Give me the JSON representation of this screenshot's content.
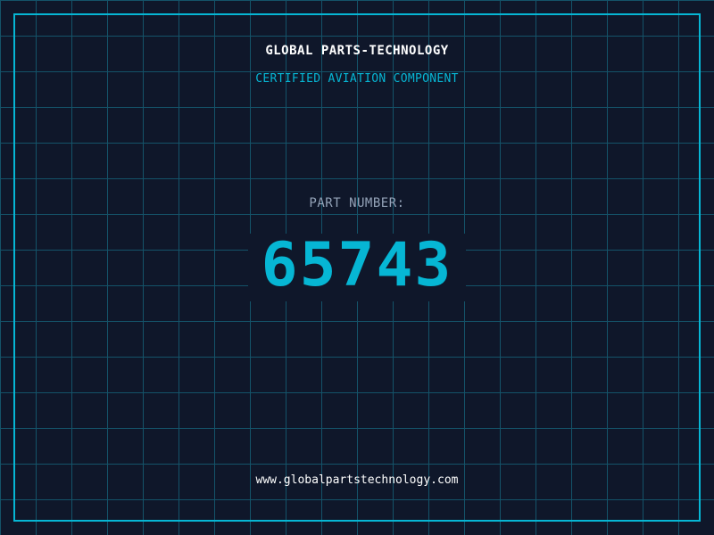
{
  "colors": {
    "background": "#0f172a",
    "grid": "#155e75",
    "accent": "#06b6d4",
    "label": "#94a3b8",
    "text": "#ffffff"
  },
  "header": {
    "title": "GLOBAL PARTS-TECHNOLOGY",
    "subtitle": "CERTIFIED AVIATION COMPONENT"
  },
  "part": {
    "label": "PART NUMBER:",
    "number": "65743"
  },
  "footer": {
    "url": "www.globalpartstechnology.com"
  }
}
